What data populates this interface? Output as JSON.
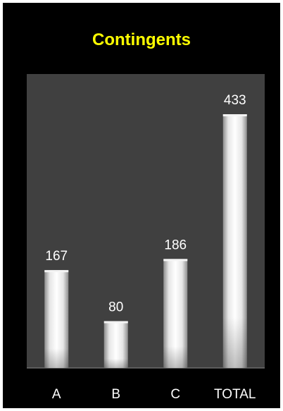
{
  "chart_data": {
    "type": "bar",
    "title": "Contingents",
    "xlabel": "",
    "ylabel": "",
    "categories": [
      "A",
      "B",
      "C",
      "TOTAL"
    ],
    "values": [
      167,
      80,
      186,
      433
    ],
    "ylim": [
      0,
      433
    ],
    "grid": false,
    "legend": "none",
    "colors": {
      "background": "#000000",
      "plot_area": "#404040",
      "title": "#ffff00",
      "text": "#ffffff",
      "bar_light": "#ffffff",
      "bar_dark": "#9a9a9a"
    }
  }
}
